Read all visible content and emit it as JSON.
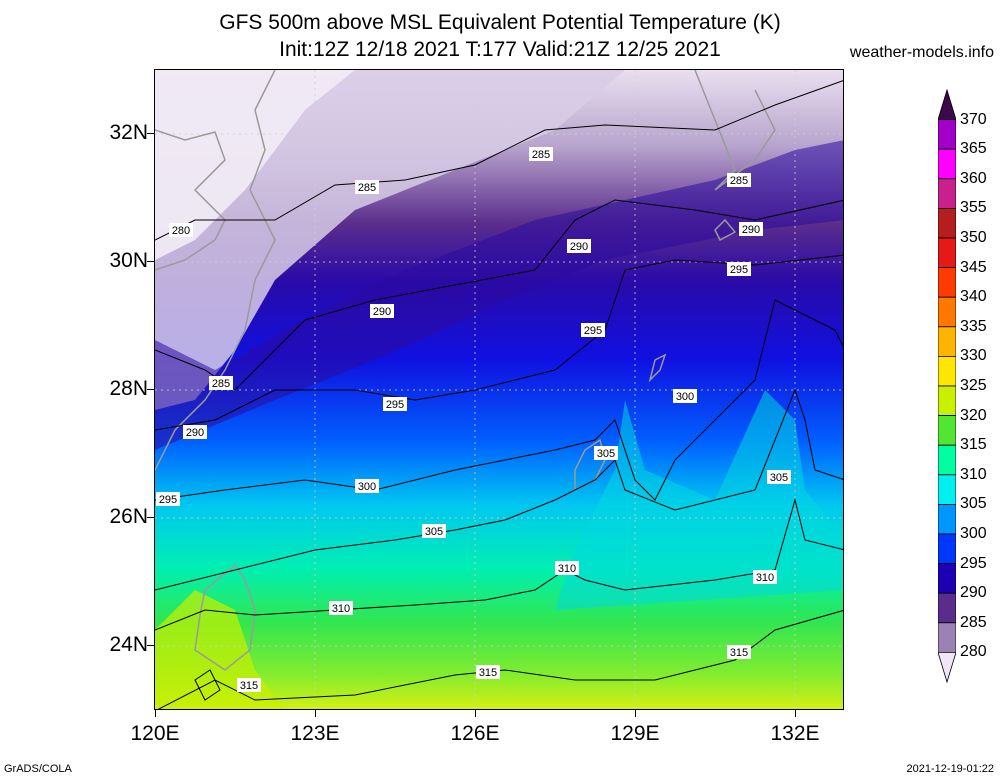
{
  "header": {
    "title_line1": "GFS 500m above MSL Equivalent Potential Temperature (K)",
    "title_line2": "Init:12Z 12/18 2021 T:177 Valid:21Z 12/25 2021",
    "site": "weather-models.info"
  },
  "axes": {
    "lat_labels": [
      "32N",
      "30N",
      "28N",
      "26N",
      "24N"
    ],
    "lon_labels": [
      "120E",
      "123E",
      "126E",
      "129E",
      "132E"
    ]
  },
  "colorbar": {
    "labels": [
      "370",
      "365",
      "360",
      "355",
      "350",
      "345",
      "340",
      "335",
      "330",
      "325",
      "320",
      "315",
      "310",
      "305",
      "300",
      "295",
      "290",
      "285",
      "280"
    ],
    "colors": [
      "#3a0a4a",
      "#a000c8",
      "#ff00ff",
      "#c8208c",
      "#b41e1e",
      "#e61919",
      "#ff3c00",
      "#ff7800",
      "#ffb400",
      "#ffe600",
      "#c8f000",
      "#50e632",
      "#00ffa0",
      "#00f0f0",
      "#0096ff",
      "#0037ff",
      "#1e00b4",
      "#5a2d8c",
      "#9a82b4",
      "#f0e6f5"
    ]
  },
  "contours": {
    "labels": [
      "280",
      "285",
      "285",
      "285",
      "285",
      "290",
      "290",
      "290",
      "290",
      "295",
      "295",
      "295",
      "295",
      "300",
      "300",
      "305",
      "305",
      "305",
      "310",
      "310",
      "310",
      "315",
      "315",
      "315"
    ]
  },
  "footer": {
    "left": "GrADS/COLA",
    "right": "2021-12-19-01:22"
  }
}
